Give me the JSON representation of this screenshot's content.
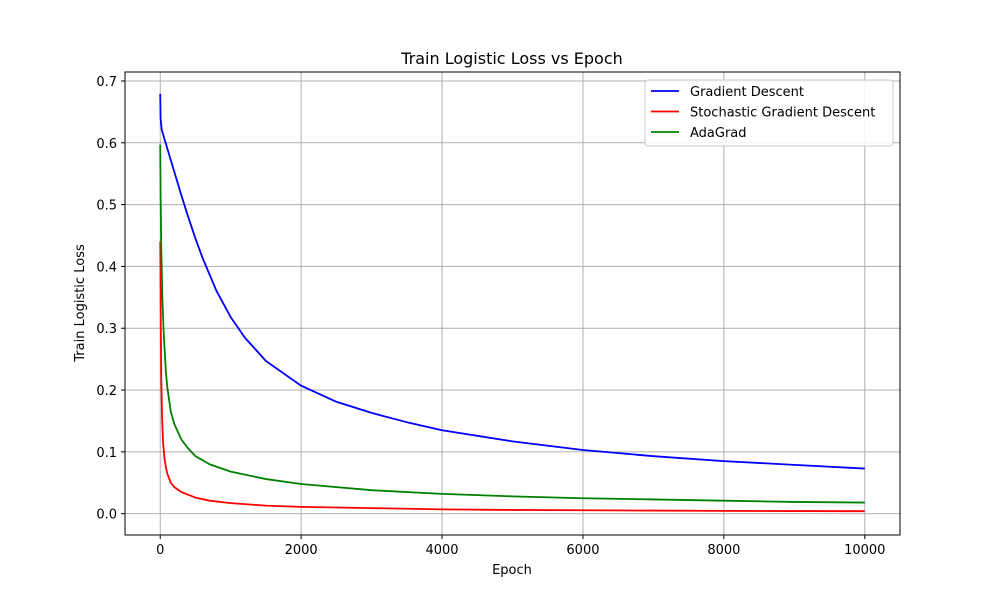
{
  "chart_data": {
    "type": "line",
    "title": "Train Logistic Loss vs Epoch",
    "xlabel": "Epoch",
    "ylabel": "Train Logistic Loss",
    "xlim": [
      -500,
      10500
    ],
    "ylim": [
      -0.0345,
      0.7145
    ],
    "xticks": [
      0,
      2000,
      4000,
      6000,
      8000,
      10000
    ],
    "yticks": [
      0.0,
      0.1,
      0.2,
      0.3,
      0.4,
      0.5,
      0.6,
      0.7
    ],
    "xtick_labels": [
      "0",
      "2000",
      "4000",
      "6000",
      "8000",
      "10000"
    ],
    "ytick_labels": [
      "0.0",
      "0.1",
      "0.2",
      "0.3",
      "0.4",
      "0.5",
      "0.6",
      "0.7"
    ],
    "grid": true,
    "legend_position": "top-right",
    "series": [
      {
        "name": "Gradient Descent",
        "color": "#0000ff",
        "x": [
          0,
          5,
          20,
          60,
          100,
          200,
          300,
          400,
          500,
          600,
          800,
          1000,
          1200,
          1500,
          2000,
          2500,
          3000,
          3500,
          4000,
          5000,
          6000,
          7000,
          8000,
          9000,
          10000
        ],
        "y": [
          0.679,
          0.64,
          0.622,
          0.606,
          0.591,
          0.553,
          0.515,
          0.479,
          0.445,
          0.414,
          0.36,
          0.318,
          0.285,
          0.247,
          0.207,
          0.181,
          0.163,
          0.148,
          0.135,
          0.117,
          0.103,
          0.093,
          0.085,
          0.079,
          0.073
        ]
      },
      {
        "name": "Stochastic Gradient Descent",
        "color": "#ff0000",
        "x": [
          0,
          3,
          8,
          15,
          25,
          40,
          60,
          80,
          100,
          150,
          200,
          300,
          500,
          700,
          1000,
          1500,
          2000,
          3000,
          4000,
          5000,
          6000,
          7000,
          8000,
          9000,
          10000
        ],
        "y": [
          0.44,
          0.4,
          0.3,
          0.22,
          0.16,
          0.115,
          0.09,
          0.075,
          0.065,
          0.05,
          0.043,
          0.035,
          0.026,
          0.021,
          0.017,
          0.013,
          0.011,
          0.009,
          0.007,
          0.006,
          0.0055,
          0.005,
          0.0045,
          0.0042,
          0.004
        ]
      },
      {
        "name": "AdaGrad",
        "color": "#008000",
        "x": [
          0,
          5,
          15,
          30,
          50,
          80,
          100,
          150,
          200,
          300,
          400,
          500,
          700,
          1000,
          1500,
          2000,
          3000,
          4000,
          5000,
          6000,
          7000,
          8000,
          9000,
          10000
        ],
        "y": [
          0.597,
          0.52,
          0.43,
          0.35,
          0.29,
          0.23,
          0.205,
          0.165,
          0.145,
          0.12,
          0.105,
          0.093,
          0.08,
          0.068,
          0.056,
          0.048,
          0.038,
          0.032,
          0.028,
          0.025,
          0.023,
          0.021,
          0.019,
          0.018
        ]
      }
    ]
  }
}
